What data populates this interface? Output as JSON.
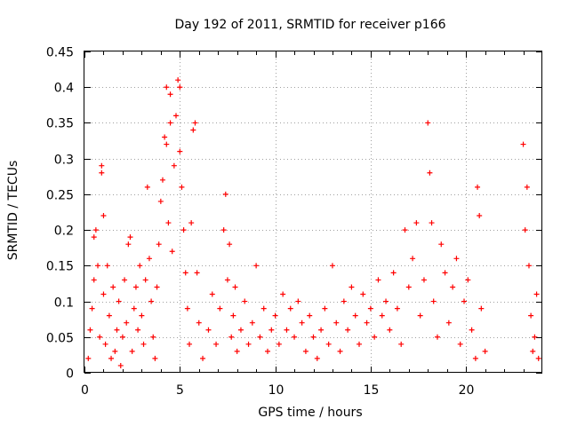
{
  "chart_data": {
    "type": "scatter",
    "title": "Day 192 of 2011, SRMTID for receiver p166",
    "xlabel": "GPS time / hours",
    "ylabel": "SRMTID / TECUs",
    "xlim": [
      0,
      24
    ],
    "ylim": [
      0,
      0.45
    ],
    "grid": true,
    "marker": "+",
    "x_ticks": [
      0,
      5,
      10,
      15,
      20
    ],
    "y_ticks": [
      0,
      0.05,
      0.1,
      0.15,
      0.2,
      0.25,
      0.3,
      0.35,
      0.4,
      0.45
    ],
    "x_tick_labels": [
      "0",
      "5",
      "10",
      "15",
      "20"
    ],
    "y_tick_labels": [
      "0",
      "0.05",
      "0.1",
      "0.15",
      "0.2",
      "0.25",
      "0.3",
      "0.35",
      "0.4",
      "0.45"
    ],
    "series": [
      {
        "color": "#ff0000",
        "points": [
          [
            0.2,
            0.02
          ],
          [
            0.3,
            0.06
          ],
          [
            0.4,
            0.09
          ],
          [
            0.5,
            0.13
          ],
          [
            0.5,
            0.19
          ],
          [
            0.6,
            0.2
          ],
          [
            0.7,
            0.15
          ],
          [
            0.8,
            0.05
          ],
          [
            0.9,
            0.29
          ],
          [
            0.9,
            0.28
          ],
          [
            1.0,
            0.22
          ],
          [
            1.0,
            0.11
          ],
          [
            1.1,
            0.04
          ],
          [
            1.2,
            0.15
          ],
          [
            1.3,
            0.08
          ],
          [
            1.4,
            0.02
          ],
          [
            1.5,
            0.12
          ],
          [
            1.6,
            0.03
          ],
          [
            1.7,
            0.06
          ],
          [
            1.8,
            0.1
          ],
          [
            1.9,
            0.01
          ],
          [
            2.0,
            0.05
          ],
          [
            2.1,
            0.13
          ],
          [
            2.2,
            0.07
          ],
          [
            2.3,
            0.18
          ],
          [
            2.4,
            0.19
          ],
          [
            2.5,
            0.03
          ],
          [
            2.6,
            0.09
          ],
          [
            2.7,
            0.12
          ],
          [
            2.8,
            0.06
          ],
          [
            2.9,
            0.15
          ],
          [
            3.0,
            0.08
          ],
          [
            3.1,
            0.04
          ],
          [
            3.2,
            0.13
          ],
          [
            3.3,
            0.26
          ],
          [
            3.4,
            0.16
          ],
          [
            3.5,
            0.1
          ],
          [
            3.6,
            0.05
          ],
          [
            3.7,
            0.02
          ],
          [
            3.8,
            0.12
          ],
          [
            3.9,
            0.18
          ],
          [
            4.0,
            0.24
          ],
          [
            4.1,
            0.27
          ],
          [
            4.2,
            0.33
          ],
          [
            4.3,
            0.4
          ],
          [
            4.3,
            0.32
          ],
          [
            4.4,
            0.21
          ],
          [
            4.5,
            0.35
          ],
          [
            4.5,
            0.39
          ],
          [
            4.6,
            0.17
          ],
          [
            4.7,
            0.29
          ],
          [
            4.8,
            0.36
          ],
          [
            4.9,
            0.41
          ],
          [
            5.0,
            0.4
          ],
          [
            5.0,
            0.31
          ],
          [
            5.1,
            0.26
          ],
          [
            5.2,
            0.2
          ],
          [
            5.3,
            0.14
          ],
          [
            5.4,
            0.09
          ],
          [
            5.5,
            0.04
          ],
          [
            5.6,
            0.21
          ],
          [
            5.7,
            0.34
          ],
          [
            5.8,
            0.35
          ],
          [
            5.9,
            0.14
          ],
          [
            6.0,
            0.07
          ],
          [
            6.2,
            0.02
          ],
          [
            6.5,
            0.06
          ],
          [
            6.7,
            0.11
          ],
          [
            6.9,
            0.04
          ],
          [
            7.1,
            0.09
          ],
          [
            7.3,
            0.2
          ],
          [
            7.4,
            0.25
          ],
          [
            7.5,
            0.13
          ],
          [
            7.6,
            0.18
          ],
          [
            7.7,
            0.05
          ],
          [
            7.8,
            0.08
          ],
          [
            7.9,
            0.12
          ],
          [
            8.0,
            0.03
          ],
          [
            8.2,
            0.06
          ],
          [
            8.4,
            0.1
          ],
          [
            8.6,
            0.04
          ],
          [
            8.8,
            0.07
          ],
          [
            9.0,
            0.15
          ],
          [
            9.2,
            0.05
          ],
          [
            9.4,
            0.09
          ],
          [
            9.6,
            0.03
          ],
          [
            9.8,
            0.06
          ],
          [
            10.0,
            0.08
          ],
          [
            10.2,
            0.04
          ],
          [
            10.4,
            0.11
          ],
          [
            10.6,
            0.06
          ],
          [
            10.8,
            0.09
          ],
          [
            11.0,
            0.05
          ],
          [
            11.2,
            0.1
          ],
          [
            11.4,
            0.07
          ],
          [
            11.6,
            0.03
          ],
          [
            11.8,
            0.08
          ],
          [
            12.0,
            0.05
          ],
          [
            12.2,
            0.02
          ],
          [
            12.4,
            0.06
          ],
          [
            12.6,
            0.09
          ],
          [
            12.8,
            0.04
          ],
          [
            13.0,
            0.15
          ],
          [
            13.2,
            0.07
          ],
          [
            13.4,
            0.03
          ],
          [
            13.6,
            0.1
          ],
          [
            13.8,
            0.06
          ],
          [
            14.0,
            0.12
          ],
          [
            14.2,
            0.08
          ],
          [
            14.4,
            0.04
          ],
          [
            14.6,
            0.11
          ],
          [
            14.8,
            0.07
          ],
          [
            15.0,
            0.09
          ],
          [
            15.2,
            0.05
          ],
          [
            15.4,
            0.13
          ],
          [
            15.6,
            0.08
          ],
          [
            15.8,
            0.1
          ],
          [
            16.0,
            0.06
          ],
          [
            16.2,
            0.14
          ],
          [
            16.4,
            0.09
          ],
          [
            16.6,
            0.04
          ],
          [
            16.8,
            0.2
          ],
          [
            17.0,
            0.12
          ],
          [
            17.2,
            0.16
          ],
          [
            17.4,
            0.21
          ],
          [
            17.6,
            0.08
          ],
          [
            17.8,
            0.13
          ],
          [
            18.0,
            0.35
          ],
          [
            18.1,
            0.28
          ],
          [
            18.2,
            0.21
          ],
          [
            18.3,
            0.1
          ],
          [
            18.5,
            0.05
          ],
          [
            18.7,
            0.18
          ],
          [
            18.9,
            0.14
          ],
          [
            19.1,
            0.07
          ],
          [
            19.3,
            0.12
          ],
          [
            19.5,
            0.16
          ],
          [
            19.7,
            0.04
          ],
          [
            19.9,
            0.1
          ],
          [
            20.1,
            0.13
          ],
          [
            20.3,
            0.06
          ],
          [
            20.5,
            0.02
          ],
          [
            20.6,
            0.26
          ],
          [
            20.7,
            0.22
          ],
          [
            20.8,
            0.09
          ],
          [
            21.0,
            0.03
          ],
          [
            23.0,
            0.32
          ],
          [
            23.1,
            0.2
          ],
          [
            23.2,
            0.26
          ],
          [
            23.3,
            0.15
          ],
          [
            23.4,
            0.08
          ],
          [
            23.5,
            0.03
          ],
          [
            23.6,
            0.05
          ],
          [
            23.7,
            0.11
          ],
          [
            23.8,
            0.02
          ]
        ]
      }
    ]
  }
}
